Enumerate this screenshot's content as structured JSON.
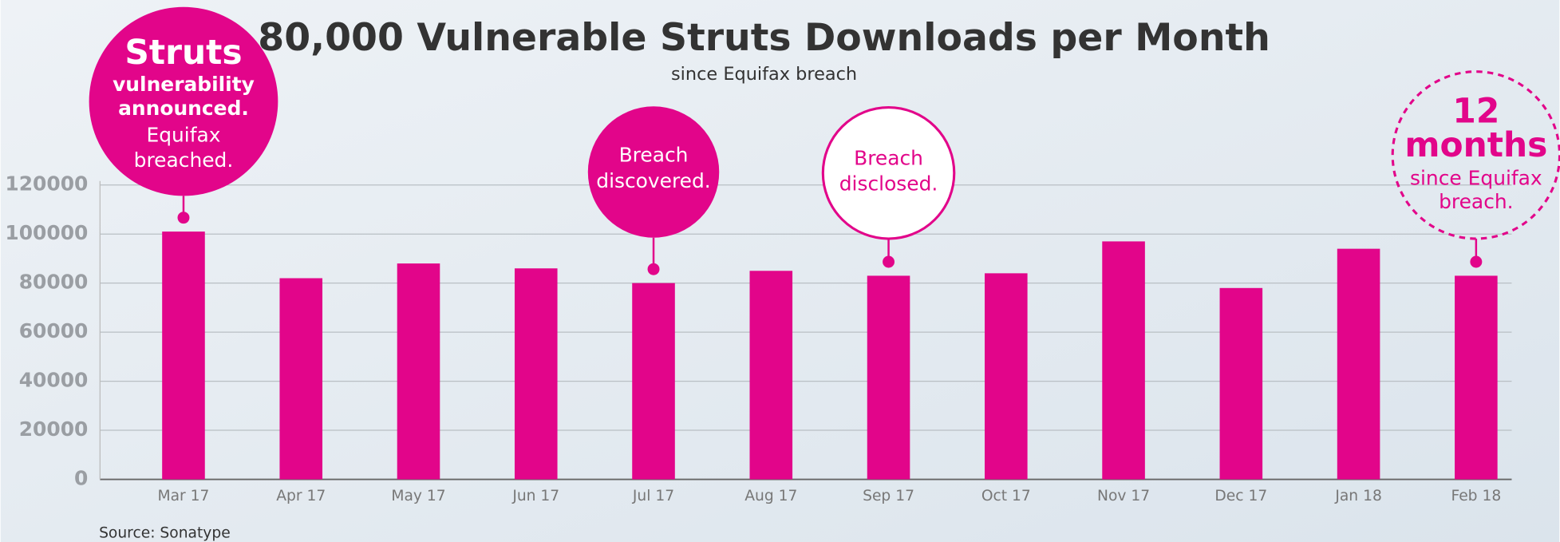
{
  "chart_data": {
    "type": "bar",
    "title": "80,000 Vulnerable Struts Downloads per Month",
    "subtitle": "since Equifax breach",
    "source": "Source: Sonatype",
    "categories": [
      "Mar 17",
      "Apr 17",
      "May 17",
      "Jun 17",
      "Jul 17",
      "Aug 17",
      "Sep 17",
      "Oct 17",
      "Nov 17",
      "Dec 17",
      "Jan 18",
      "Feb 18"
    ],
    "values": [
      101000,
      82000,
      88000,
      86000,
      80000,
      85000,
      83000,
      84000,
      97000,
      78000,
      94000,
      83000
    ],
    "color": "#e2058a",
    "ylim": [
      0,
      120000
    ],
    "yticks": [
      0,
      20000,
      40000,
      60000,
      80000,
      100000,
      120000
    ],
    "grid": true,
    "annotations": [
      {
        "category": "Mar 17",
        "style": "filled",
        "lines": [
          {
            "text": "Struts",
            "weight": "bold",
            "size": "large"
          },
          {
            "text": "vulnerability",
            "weight": "bold",
            "size": "normal"
          },
          {
            "text": "announced.",
            "weight": "bold",
            "size": "normal"
          },
          {
            "text": "Equifax",
            "weight": "normal",
            "size": "normal"
          },
          {
            "text": "breached.",
            "weight": "normal",
            "size": "normal"
          }
        ]
      },
      {
        "category": "Jul 17",
        "style": "filled",
        "lines": [
          {
            "text": "Breach",
            "weight": "normal",
            "size": "normal"
          },
          {
            "text": "discovered.",
            "weight": "normal",
            "size": "normal"
          }
        ]
      },
      {
        "category": "Sep 17",
        "style": "outline",
        "lines": [
          {
            "text": "Breach",
            "weight": "normal",
            "size": "normal"
          },
          {
            "text": "disclosed.",
            "weight": "normal",
            "size": "normal"
          }
        ]
      },
      {
        "category": "Feb 18",
        "style": "dashed",
        "lines": [
          {
            "text": "12",
            "weight": "bold",
            "size": "large"
          },
          {
            "text": "months",
            "weight": "bold",
            "size": "large"
          },
          {
            "text": "since Equifax",
            "weight": "normal",
            "size": "normal"
          },
          {
            "text": "breach.",
            "weight": "normal",
            "size": "normal"
          }
        ]
      }
    ]
  }
}
